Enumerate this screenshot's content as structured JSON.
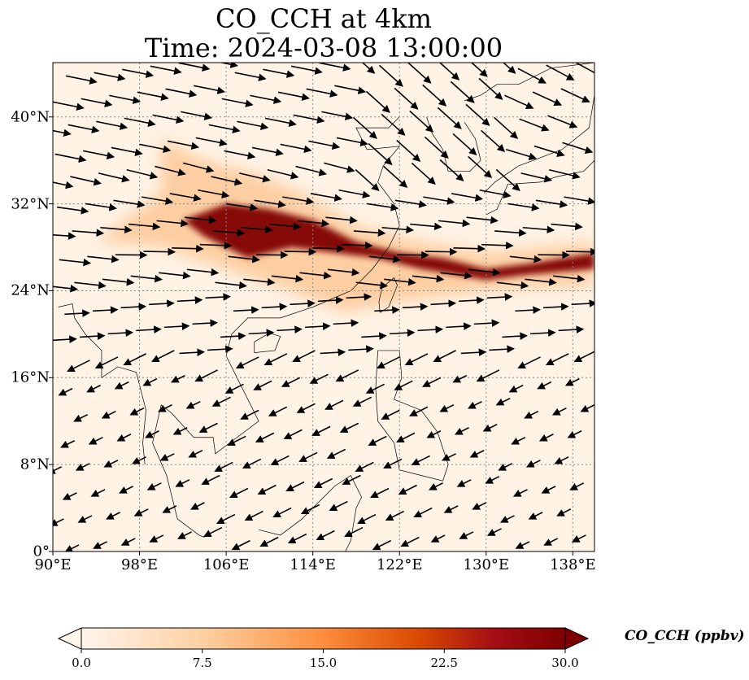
{
  "title": {
    "line1": "CO_CCH at 4km",
    "line2": "Time: 2024-03-08 13:00:00"
  },
  "chart_data": {
    "type": "heatmap",
    "title": "CO_CCH at 4km / Time: 2024-03-08 13:00:00",
    "xlim": [
      90,
      140
    ],
    "ylim": [
      0,
      45
    ],
    "x_ticks": [
      {
        "v": 90,
        "label": "90°E"
      },
      {
        "v": 98,
        "label": "98°E"
      },
      {
        "v": 106,
        "label": "106°E"
      },
      {
        "v": 114,
        "label": "114°E"
      },
      {
        "v": 122,
        "label": "122°E"
      },
      {
        "v": 130,
        "label": "130°E"
      },
      {
        "v": 138,
        "label": "138°E"
      }
    ],
    "y_ticks": [
      {
        "v": 0,
        "label": "0°"
      },
      {
        "v": 8,
        "label": "8°N"
      },
      {
        "v": 16,
        "label": "16°N"
      },
      {
        "v": 24,
        "label": "24°N"
      },
      {
        "v": 32,
        "label": "32°N"
      },
      {
        "v": 40,
        "label": "40°N"
      }
    ],
    "grid": true,
    "colorbar": {
      "label": "CO_CCH (ppbv)",
      "min": 0,
      "max": 30,
      "ticks": [
        "0.0",
        "7.5",
        "15.0",
        "22.5",
        "30.0"
      ],
      "colormap": [
        "#fff5eb",
        "#fdd0a2",
        "#fd8d3c",
        "#d94801",
        "#a50f15",
        "#7f0000"
      ],
      "extend": "both"
    },
    "plume": [
      {
        "level": 30,
        "lonlat": [
          [
            102,
            30.5
          ],
          [
            106,
            32
          ],
          [
            110,
            31.5
          ],
          [
            114,
            30.5
          ],
          [
            118,
            28.5
          ],
          [
            122,
            27.5
          ],
          [
            126,
            27
          ],
          [
            130,
            26
          ],
          [
            134,
            26.5
          ],
          [
            140,
            27.5
          ],
          [
            140,
            26
          ],
          [
            134,
            25.5
          ],
          [
            130,
            25
          ],
          [
            124,
            26
          ],
          [
            120,
            27
          ],
          [
            116,
            27.5
          ],
          [
            112,
            28
          ],
          [
            108,
            27
          ],
          [
            104,
            29
          ]
        ]
      },
      {
        "level": 8,
        "lonlat": [
          [
            100,
            38
          ],
          [
            104,
            36
          ],
          [
            108,
            35
          ],
          [
            113,
            33
          ],
          [
            118,
            30
          ],
          [
            124,
            28.5
          ],
          [
            130,
            27.5
          ],
          [
            140,
            28.5
          ],
          [
            140,
            24.5
          ],
          [
            130,
            24
          ],
          [
            122,
            23
          ],
          [
            117,
            22
          ],
          [
            112,
            24
          ],
          [
            106,
            26
          ],
          [
            100,
            28
          ],
          [
            94,
            28.5
          ],
          [
            92,
            27
          ],
          [
            96,
            30
          ],
          [
            100,
            33
          ]
        ]
      }
    ]
  }
}
